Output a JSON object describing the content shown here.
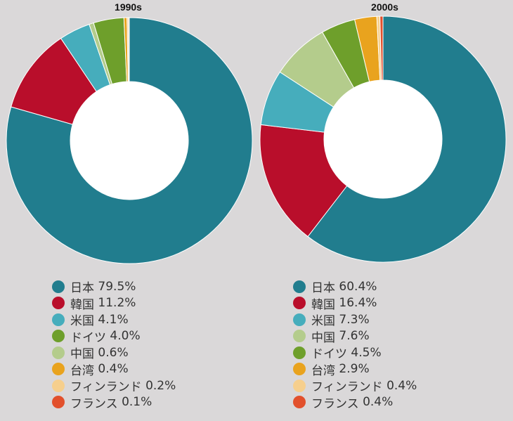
{
  "chart_data": [
    {
      "type": "pie",
      "title": "1990s",
      "series": [
        {
          "name": "日本",
          "value": 79.5,
          "label": "79.5%",
          "color": "#217d8e"
        },
        {
          "name": "韓国",
          "value": 11.2,
          "label": "11.2%",
          "color": "#b90e2b"
        },
        {
          "name": "米国",
          "value": 4.1,
          "label": "4.1%",
          "color": "#46adbc"
        },
        {
          "name": "ドイツ",
          "value": 4.0,
          "label": "4.0%",
          "color": "#6e9f2b"
        },
        {
          "name": "中国",
          "value": 0.6,
          "label": "0.6%",
          "color": "#b4cc8c"
        },
        {
          "name": "台湾",
          "value": 0.4,
          "label": "0.4%",
          "color": "#e9a31e"
        },
        {
          "name": "フィンランド",
          "value": 0.2,
          "label": "0.2%",
          "color": "#f6cf8d"
        },
        {
          "name": "フランス",
          "value": 0.1,
          "label": "0.1%",
          "color": "#e2502c"
        }
      ],
      "wedge_order": [
        "日本",
        "韓国",
        "米国",
        "中国",
        "ドイツ",
        "台湾",
        "フィンランド",
        "フランス"
      ]
    },
    {
      "type": "pie",
      "title": "2000s",
      "series": [
        {
          "name": "日本",
          "value": 60.4,
          "label": "60.4%",
          "color": "#217d8e"
        },
        {
          "name": "韓国",
          "value": 16.4,
          "label": "16.4%",
          "color": "#b90e2b"
        },
        {
          "name": "米国",
          "value": 7.3,
          "label": "7.3%",
          "color": "#46adbc"
        },
        {
          "name": "中国",
          "value": 7.6,
          "label": "7.6%",
          "color": "#b4cc8c"
        },
        {
          "name": "ドイツ",
          "value": 4.5,
          "label": "4.5%",
          "color": "#6e9f2b"
        },
        {
          "name": "台湾",
          "value": 2.9,
          "label": "2.9%",
          "color": "#e9a31e"
        },
        {
          "name": "フィンランド",
          "value": 0.4,
          "label": "0.4%",
          "color": "#f6cf8d"
        },
        {
          "name": "フランス",
          "value": 0.4,
          "label": "0.4%",
          "color": "#e2502c"
        }
      ],
      "wedge_order": [
        "日本",
        "韓国",
        "米国",
        "中国",
        "ドイツ",
        "台湾",
        "フィンランド",
        "フランス"
      ]
    }
  ]
}
